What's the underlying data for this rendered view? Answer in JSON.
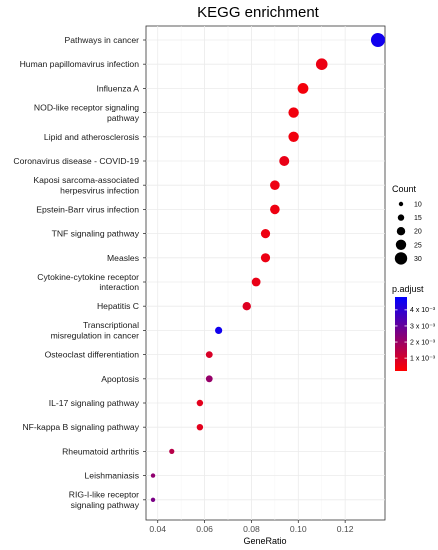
{
  "chart_data": {
    "type": "scatter",
    "title": "KEGG enrichment",
    "xlabel": "GeneRatio",
    "ylabel": "",
    "xlim": [
      0.035,
      0.137
    ],
    "x_ticks": [
      0.04,
      0.06,
      0.08,
      0.1,
      0.12
    ],
    "x_tick_labels": [
      "0.04",
      "0.06",
      "0.08",
      "0.10",
      "0.12"
    ],
    "grid": true,
    "categories": [
      "Pathways in cancer",
      "Human papillomavirus infection",
      "Influenza A",
      "NOD-like receptor signaling\npathway",
      "Lipid and atherosclerosis",
      "Coronavirus disease - COVID-19",
      "Kaposi sarcoma-associated\nherpesvirus infection",
      "Epstein-Barr virus infection",
      "TNF signaling pathway",
      "Measles",
      "Cytokine-cytokine receptor\ninteraction",
      "Hepatitis C",
      "Transcriptional\nmisregulation in cancer",
      "Osteoclast differentiation",
      "Apoptosis",
      "IL-17 signaling pathway",
      "NF-kappa B signaling pathway",
      "Rheumatoid arthritis",
      "Leishmaniasis",
      "RIG-I-like receptor\nsignaling pathway"
    ],
    "gene_ratio": [
      0.134,
      0.11,
      0.102,
      0.098,
      0.098,
      0.094,
      0.09,
      0.09,
      0.086,
      0.086,
      0.082,
      0.078,
      0.066,
      0.062,
      0.062,
      0.058,
      0.058,
      0.046,
      0.038,
      0.038
    ],
    "count": [
      34,
      28,
      26,
      25,
      25,
      24,
      23,
      23,
      22,
      22,
      21,
      20,
      17,
      16,
      16,
      15,
      15,
      12,
      10,
      10
    ],
    "p_adjust": [
      0.0045,
      0.00055,
      0.0004,
      0.00045,
      0.00045,
      0.0006,
      0.0005,
      0.0005,
      0.0005,
      0.00055,
      0.0006,
      0.0008,
      0.0045,
      0.0009,
      0.0021,
      0.0007,
      0.0007,
      0.0015,
      0.0022,
      0.0026
    ],
    "legend_size": {
      "title": "Count",
      "values": [
        10,
        15,
        20,
        25,
        30
      ],
      "labels": [
        "10",
        "15",
        "20",
        "25",
        "30"
      ]
    },
    "legend_color": {
      "title": "p.adjust",
      "range": [
        0.0002,
        0.0048
      ],
      "ticks": [
        0.004,
        0.003,
        0.002,
        0.001
      ],
      "labels": [
        "4 x 10⁻³",
        "3 x 10⁻³",
        "2 x 10⁻³",
        "1 x 10⁻³"
      ],
      "color_low": "#ff0000",
      "color_high": "#0000ff"
    },
    "legend_placement": "right"
  }
}
